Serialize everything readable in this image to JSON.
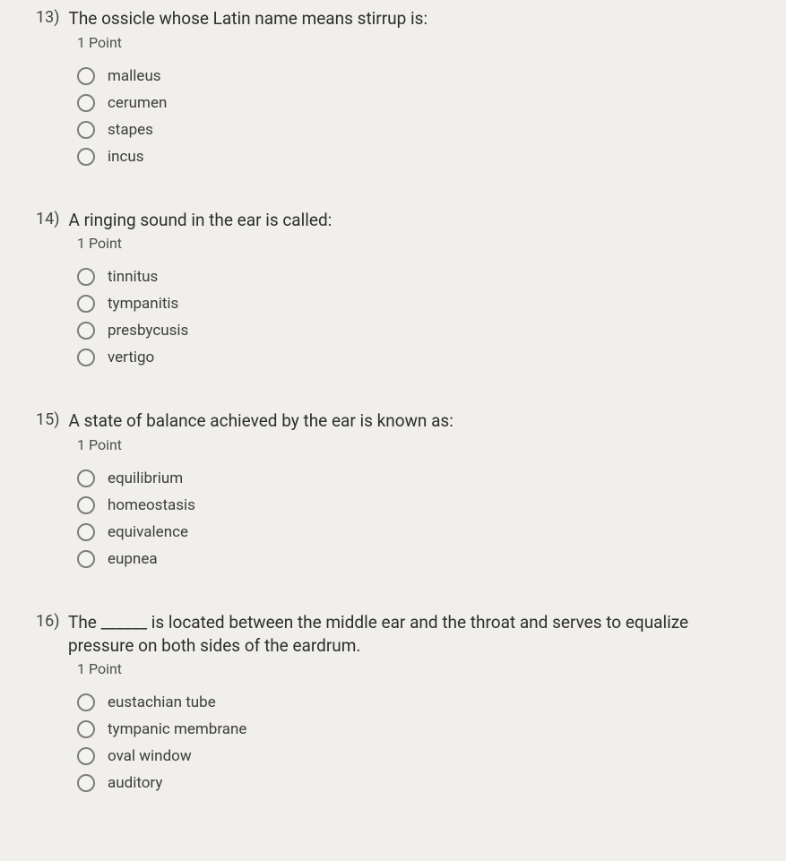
{
  "colors": {
    "background": "#f0efec",
    "text": "#3a3a3a",
    "radio_border": "#7d7d7d"
  },
  "typography": {
    "question_fontsize": 19,
    "points_fontsize": 16,
    "option_fontsize": 17
  },
  "questions": [
    {
      "number": "13)",
      "text": "The ossicle whose Latin name means stirrup is:",
      "points": "1 Point",
      "options": [
        "malleus",
        "cerumen",
        "stapes",
        "incus"
      ]
    },
    {
      "number": "14)",
      "text": "A ringing sound in the ear is called:",
      "points": "1 Point",
      "options": [
        "tinnitus",
        "tympanitis",
        "presbycusis",
        "vertigo"
      ]
    },
    {
      "number": "15)",
      "text": "A state of balance achieved by the ear is known as:",
      "points": "1 Point",
      "options": [
        "equilibrium",
        "homeostasis",
        "equivalence",
        "eupnea"
      ]
    },
    {
      "number": "16)",
      "text": "The ______ is located between the middle ear and the throat and serves to equalize pressure on both sides of the eardrum.",
      "points": "1 Point",
      "options": [
        "eustachian tube",
        "tympanic membrane",
        "oval window",
        "auditory"
      ]
    }
  ]
}
